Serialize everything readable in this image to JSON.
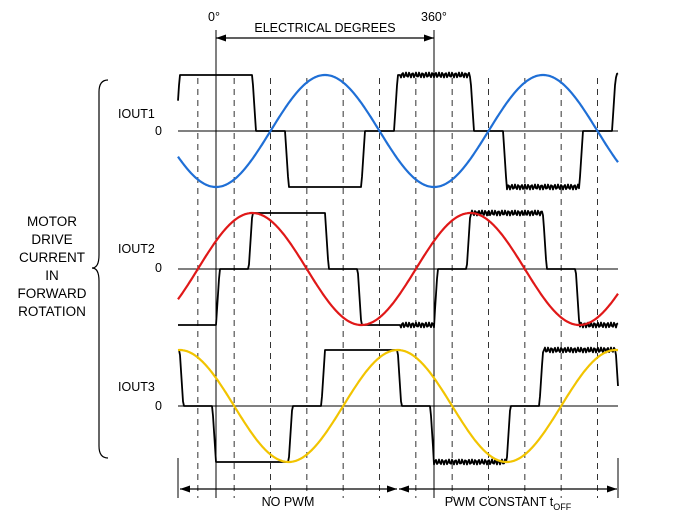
{
  "header": {
    "start_label": "0°",
    "end_label": "360°",
    "span_label": "ELECTRICAL DEGREES"
  },
  "side_label": {
    "lines": [
      "MOTOR",
      "DRIVE",
      "CURRENT",
      "IN",
      "FORWARD",
      "ROTATION"
    ]
  },
  "channels": [
    {
      "name": "IOUT1",
      "zero_label": "0",
      "sine_color": "#1f6fd6",
      "phase_deg": 0
    },
    {
      "name": "IOUT2",
      "zero_label": "0",
      "sine_color": "#e01818",
      "phase_deg": 120
    },
    {
      "name": "IOUT3",
      "zero_label": "0",
      "sine_color": "#f2c400",
      "phase_deg": 240
    }
  ],
  "footer": {
    "left_label": "NO PWM",
    "right_label_main": "PWM CONSTANT t",
    "right_label_sub": "OFF"
  },
  "colors": {
    "step_waveform": "#000000",
    "grid_dash": "#333333"
  }
}
